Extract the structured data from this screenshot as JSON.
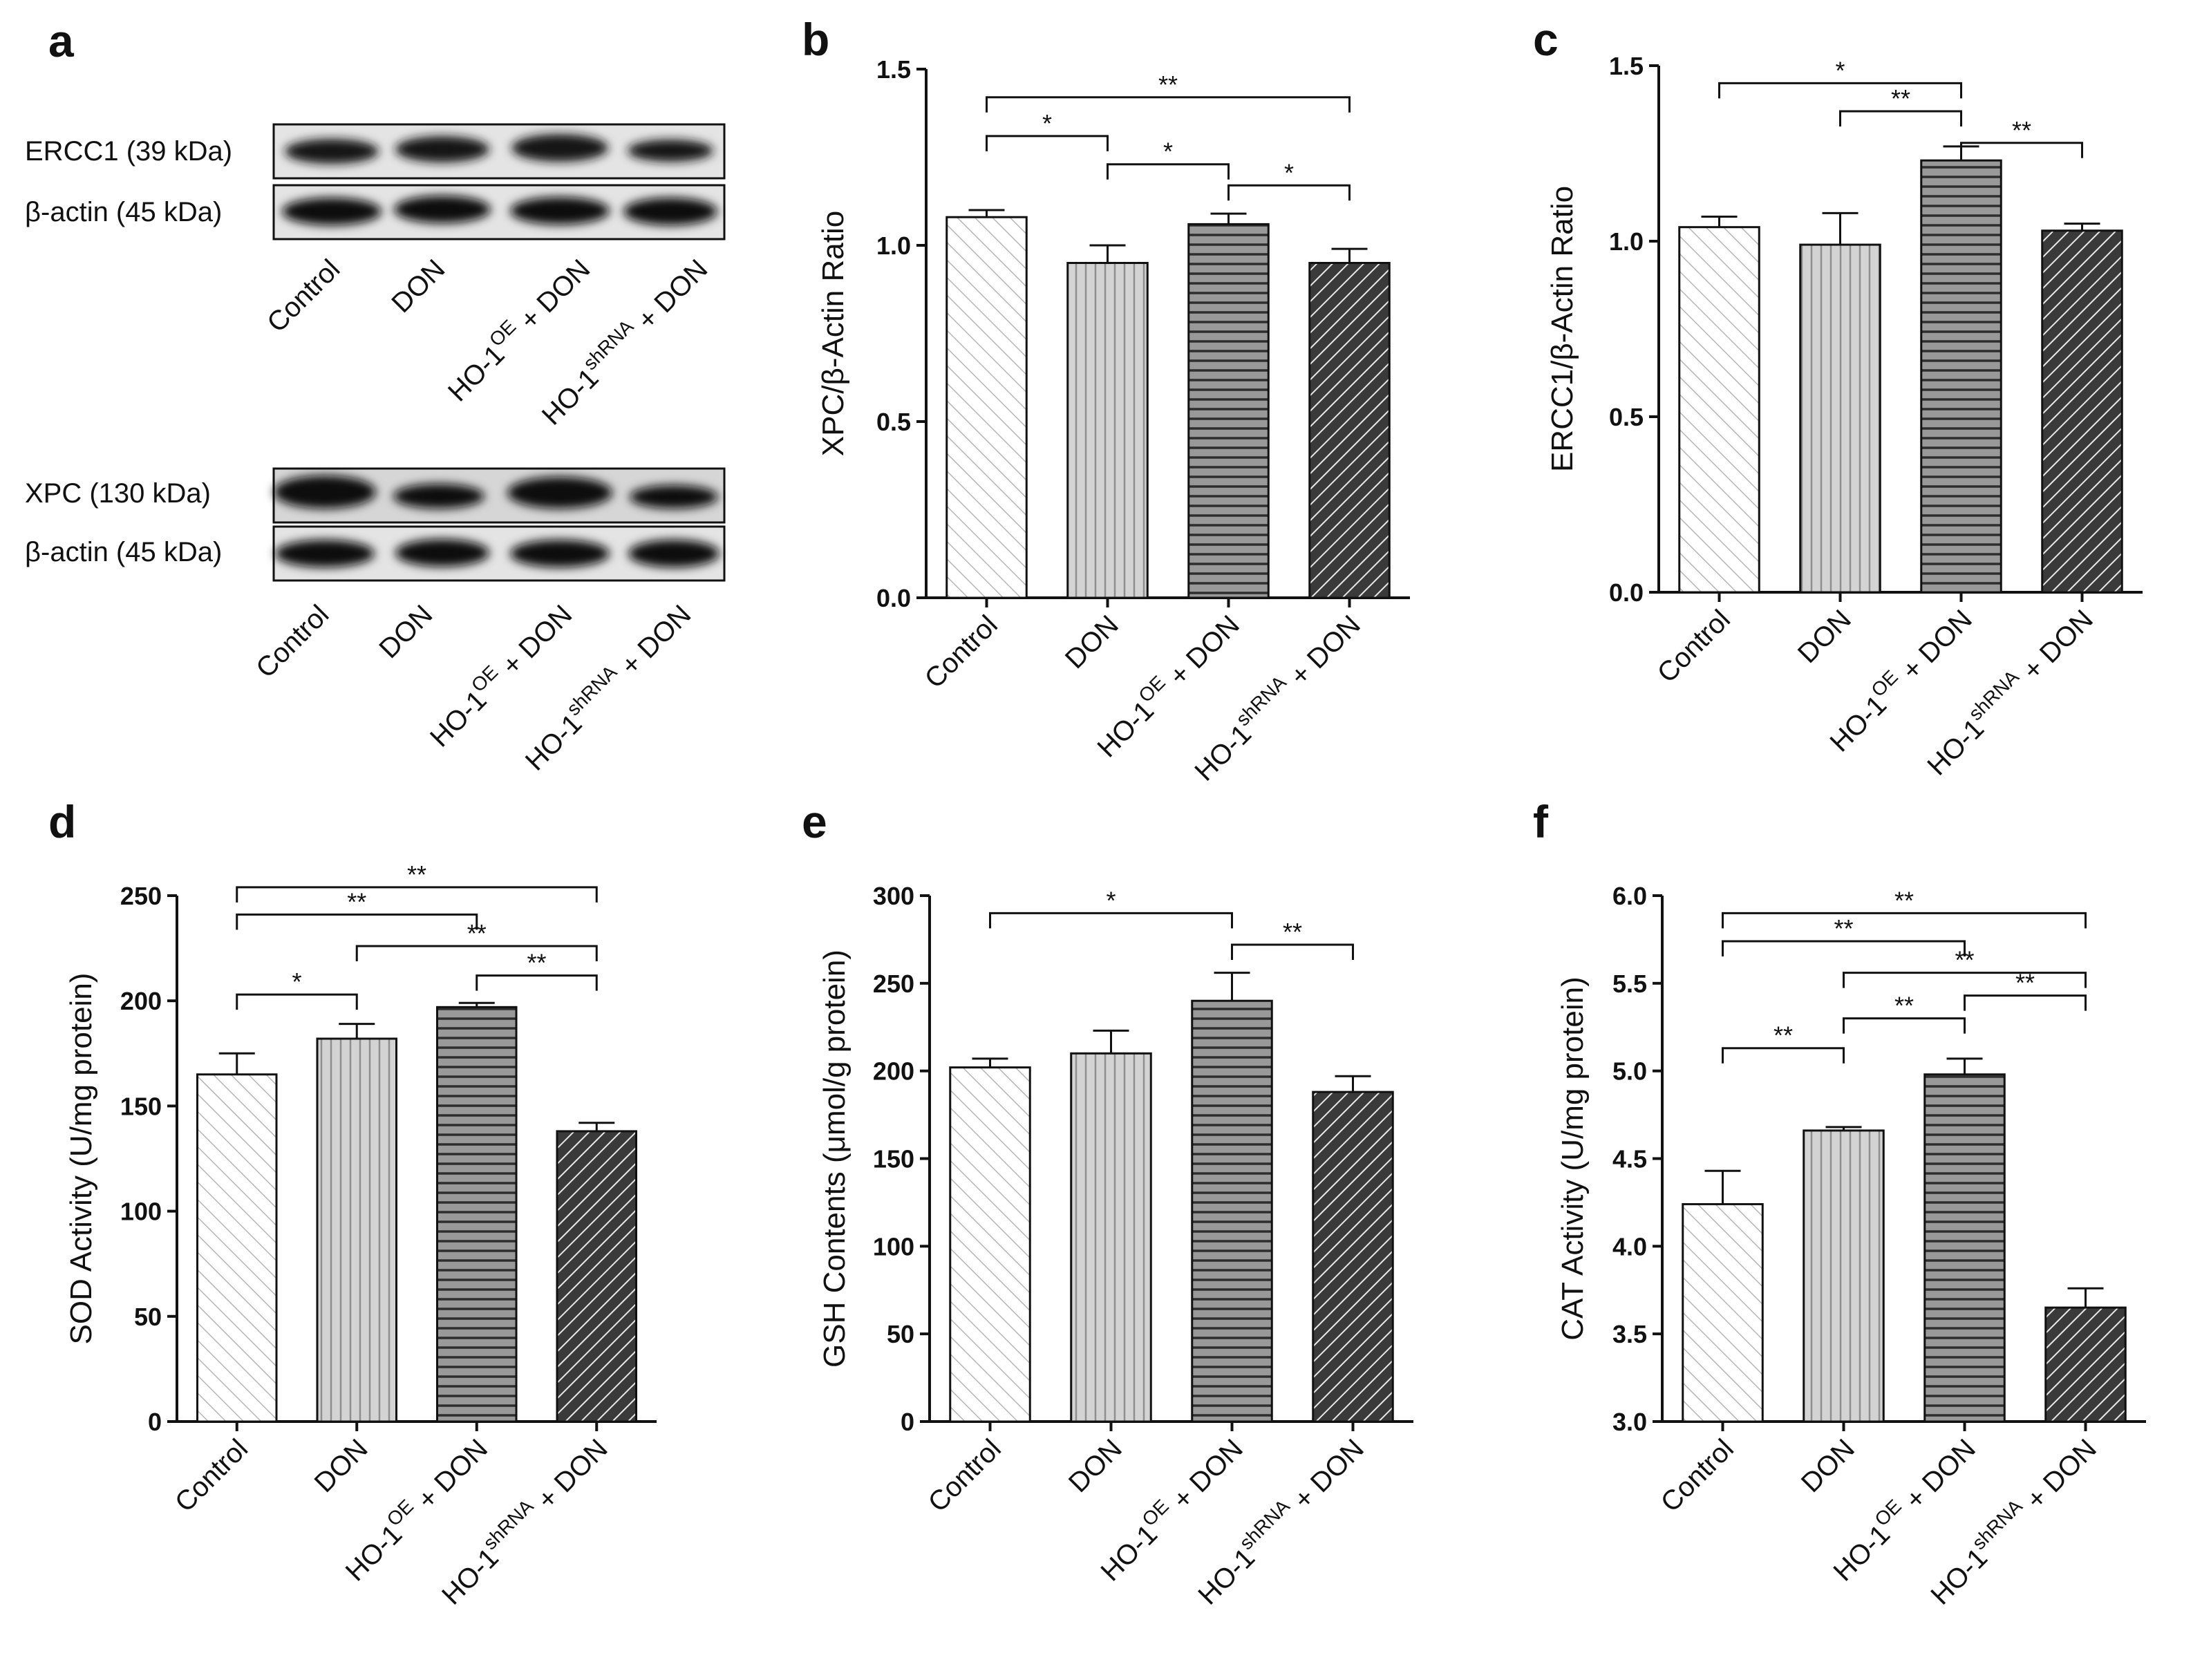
{
  "groups": {
    "control": "Control",
    "don": "DON",
    "ho_prefix": "HO-1",
    "oe_sup": "OE",
    "sh_sup": "shRNA",
    "plus_don": " + DON"
  },
  "panel_a": {
    "label": "a",
    "ercc1_label": "ERCC1 (39 kDa)",
    "actin_label_1": "β-actin (45 kDa)",
    "xpc_label": "XPC (130 kDa)",
    "actin_label_2": "β-actin (45 kDa)"
  },
  "chart_data": [
    {
      "panel": "b",
      "type": "bar",
      "categories": [
        "Control",
        "DON",
        "HO-1^OE + DON",
        "HO-1^shRNA + DON"
      ],
      "values": [
        1.08,
        0.95,
        1.06,
        0.95
      ],
      "errors": [
        0.02,
        0.05,
        0.03,
        0.04
      ],
      "ylabel": "XPC/β-Actin Ratio",
      "ylim": [
        0,
        1.5
      ],
      "ticks": [
        0.0,
        0.5,
        1.0,
        1.5
      ],
      "tick_labels": [
        "0.0",
        "0.5",
        "1.0",
        "1.5"
      ],
      "significance": [
        {
          "from": 0,
          "to": 3,
          "label": "**",
          "y": 1.42
        },
        {
          "from": 0,
          "to": 1,
          "label": "*",
          "y": 1.31
        },
        {
          "from": 1,
          "to": 2,
          "label": "*",
          "y": 1.23
        },
        {
          "from": 2,
          "to": 3,
          "label": "*",
          "y": 1.17
        }
      ]
    },
    {
      "panel": "c",
      "type": "bar",
      "categories": [
        "Control",
        "DON",
        "HO-1^OE + DON",
        "HO-1^shRNA + DON"
      ],
      "values": [
        1.04,
        0.99,
        1.23,
        1.03
      ],
      "errors": [
        0.03,
        0.09,
        0.04,
        0.02
      ],
      "ylabel": "ERCC1/β-Actin Ratio",
      "ylim": [
        0,
        1.5
      ],
      "ticks": [
        0.0,
        0.5,
        1.0,
        1.5
      ],
      "tick_labels": [
        "0.0",
        "0.5",
        "1.0",
        "1.5"
      ],
      "significance": [
        {
          "from": 0,
          "to": 2,
          "label": "*",
          "y": 1.45
        },
        {
          "from": 1,
          "to": 2,
          "label": "**",
          "y": 1.37
        },
        {
          "from": 2,
          "to": 3,
          "label": "**",
          "y": 1.28
        }
      ]
    },
    {
      "panel": "d",
      "type": "bar",
      "categories": [
        "Control",
        "DON",
        "HO-1^OE + DON",
        "HO-1^shRNA + DON"
      ],
      "values": [
        165,
        182,
        197,
        138
      ],
      "errors": [
        10,
        7,
        2,
        4
      ],
      "ylabel": "SOD Activity (U/mg protein)",
      "ylim": [
        0,
        250
      ],
      "ticks": [
        0,
        50,
        100,
        150,
        200,
        250
      ],
      "tick_labels": [
        "0",
        "50",
        "100",
        "150",
        "200",
        "250"
      ],
      "significance": [
        {
          "from": 0,
          "to": 3,
          "label": "**",
          "y": 254
        },
        {
          "from": 0,
          "to": 2,
          "label": "**",
          "y": 241
        },
        {
          "from": 1,
          "to": 3,
          "label": "**",
          "y": 226
        },
        {
          "from": 2,
          "to": 3,
          "label": "**",
          "y": 212
        },
        {
          "from": 0,
          "to": 1,
          "label": "*",
          "y": 203
        }
      ]
    },
    {
      "panel": "e",
      "type": "bar",
      "categories": [
        "Control",
        "DON",
        "HO-1^OE + DON",
        "HO-1^shRNA + DON"
      ],
      "values": [
        202,
        210,
        240,
        188
      ],
      "errors": [
        5,
        13,
        16,
        9
      ],
      "ylabel": "GSH Contents (μmol/g protein)",
      "ylim": [
        0,
        300
      ],
      "ticks": [
        0,
        50,
        100,
        150,
        200,
        250,
        300
      ],
      "tick_labels": [
        "0",
        "50",
        "100",
        "150",
        "200",
        "250",
        "300"
      ],
      "significance": [
        {
          "from": 0,
          "to": 2,
          "label": "*",
          "y": 290
        },
        {
          "from": 2,
          "to": 3,
          "label": "**",
          "y": 272
        }
      ]
    },
    {
      "panel": "f",
      "type": "bar",
      "categories": [
        "Control",
        "DON",
        "HO-1^OE + DON",
        "HO-1^shRNA + DON"
      ],
      "values": [
        4.24,
        4.66,
        4.98,
        3.65
      ],
      "errors": [
        0.19,
        0.02,
        0.09,
        0.11
      ],
      "ylabel": "CAT  Activity (U/mg protein)",
      "ylim": [
        3.0,
        6.0
      ],
      "ticks": [
        3.0,
        3.5,
        4.0,
        4.5,
        5.0,
        5.5,
        6.0
      ],
      "tick_labels": [
        "3.0",
        "3.5",
        "4.0",
        "4.5",
        "5.0",
        "5.5",
        "6.0"
      ],
      "significance": [
        {
          "from": 0,
          "to": 3,
          "label": "**",
          "y": 5.9
        },
        {
          "from": 0,
          "to": 2,
          "label": "**",
          "y": 5.74
        },
        {
          "from": 1,
          "to": 3,
          "label": "**",
          "y": 5.56
        },
        {
          "from": 2,
          "to": 3,
          "label": "**",
          "y": 5.43
        },
        {
          "from": 1,
          "to": 2,
          "label": "**",
          "y": 5.3
        },
        {
          "from": 0,
          "to": 1,
          "label": "**",
          "y": 5.13
        }
      ]
    }
  ]
}
